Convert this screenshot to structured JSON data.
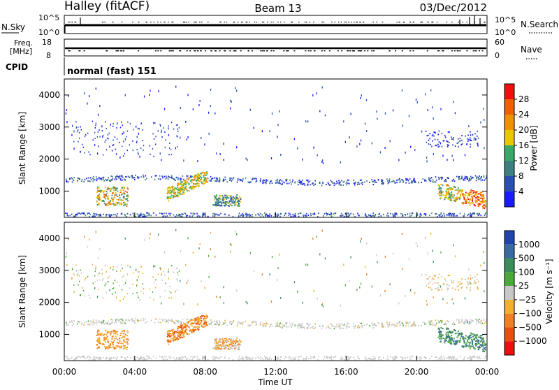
{
  "header": {
    "station": "Halley (fitACF)",
    "beam": "Beam 13",
    "date": "03/Dec/2012"
  },
  "top_panels": {
    "nsky_label": "N.Sky",
    "nsearch_label": "N.Search",
    "nsky_ticks": [
      "10^5",
      "10^0"
    ],
    "nsearch_ticks": [
      "10^5",
      "10^0"
    ],
    "freq_label_line1": "Freq.",
    "freq_label_line2": "[MHz]",
    "freq_ticks": [
      "18",
      "8"
    ],
    "nave_label": "Nave",
    "nave_ticks": [
      "60",
      "0"
    ],
    "cpid_label": "CPID",
    "cpid_text": "normal (fast) 151"
  },
  "chart_data": [
    {
      "type": "heatmap",
      "name": "power",
      "xlabel": "",
      "ylabel": "Slant Range [km]",
      "yticks": [
        "1000",
        "2000",
        "3000",
        "4000"
      ],
      "ylim": [
        180,
        4500
      ],
      "colorbar_label": "Power [dB]",
      "colorbar_ticks": [
        "4",
        "8",
        "12",
        "16",
        "20",
        "24",
        "28"
      ],
      "colors": [
        "#1a1aff",
        "#2b4fb0",
        "#3f7f7f",
        "#39a86a",
        "#e8c800",
        "#f09000",
        "#f06000",
        "#ee1010"
      ]
    },
    {
      "type": "heatmap",
      "name": "velocity",
      "xlabel": "Time UT",
      "ylabel": "Slant Range [km]",
      "yticks": [
        "1000",
        "2000",
        "3000",
        "4000"
      ],
      "ylim": [
        180,
        4500
      ],
      "xticks": [
        "00:00",
        "04:00",
        "08:00",
        "12:00",
        "16:00",
        "20:00",
        "00:00"
      ],
      "colorbar_label": "Velocity [m s⁻¹]",
      "colorbar_ticks": [
        "1000",
        "500",
        "100",
        "25",
        "−25",
        "−100",
        "−500",
        "−1000"
      ],
      "colors": [
        "#2244aa",
        "#3a6aa0",
        "#3c8c5c",
        "#4ca83c",
        "#c8c8c8",
        "#f0b030",
        "#f08020",
        "#e85010",
        "#e81010"
      ]
    }
  ]
}
